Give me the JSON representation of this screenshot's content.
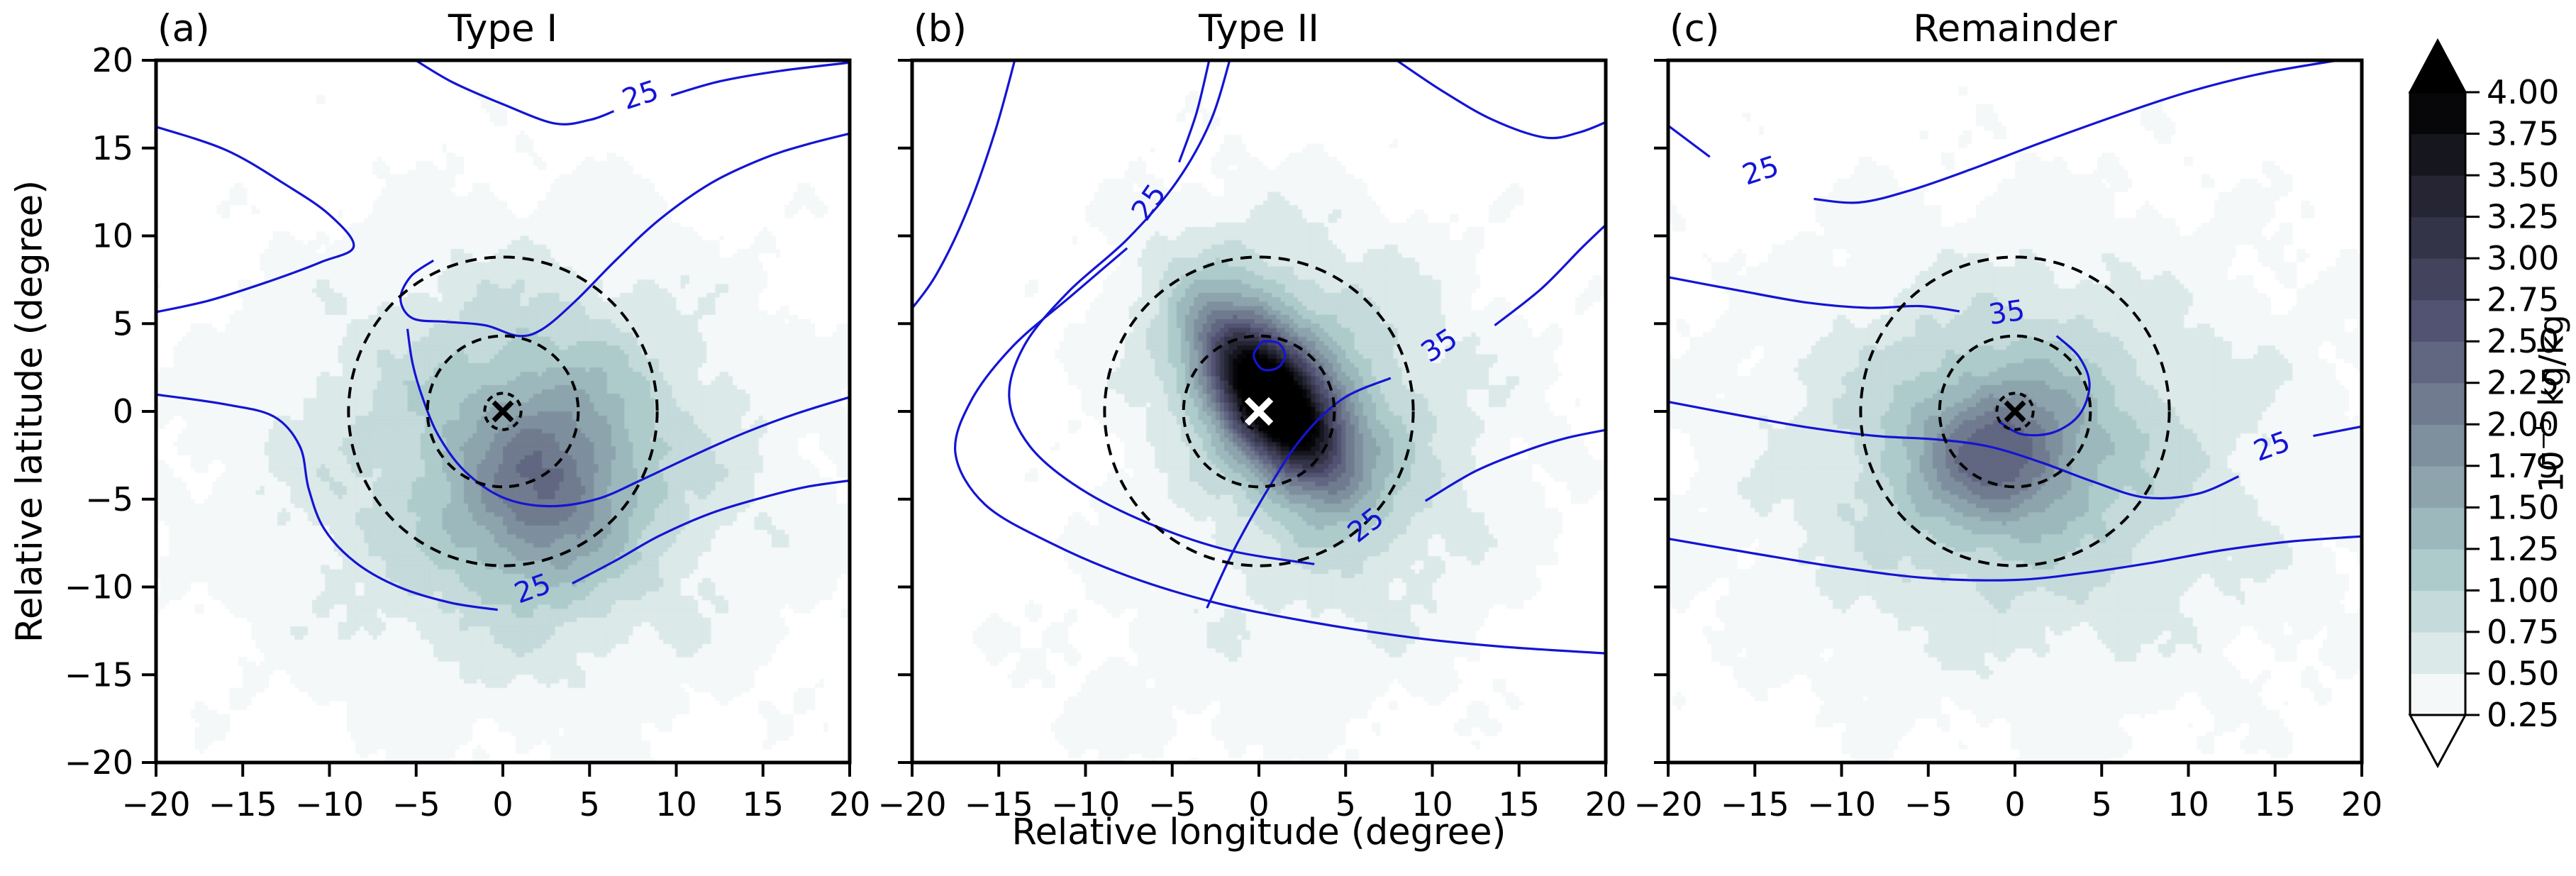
{
  "chart_data": {
    "type": "contour",
    "figure": {
      "xlabel": "Relative longitude (degree)",
      "ylabel": "Relative latitude (degree)",
      "xlim": [
        -20,
        20
      ],
      "ylim": [
        -20,
        20
      ],
      "x_ticks": [
        -20,
        -15,
        -10,
        -5,
        0,
        5,
        10,
        15,
        20
      ],
      "y_ticks": [
        -20,
        -15,
        -10,
        -5,
        0,
        5,
        10,
        15,
        20
      ],
      "x_tick_labels": [
        "−20",
        "−15",
        "−10",
        "−5",
        "0",
        "5",
        "10",
        "15",
        "20"
      ],
      "y_tick_labels": [
        "−20",
        "−15",
        "−10",
        "−5",
        "0",
        "5",
        "10",
        "15",
        "20"
      ]
    },
    "colorbar": {
      "unit": {
        "base": "10",
        "exponent": "−5",
        "rest": " kg/kg"
      },
      "tick_labels": [
        "0.25",
        "0.50",
        "0.75",
        "1.00",
        "1.25",
        "1.50",
        "1.75",
        "2.00",
        "2.25",
        "2.50",
        "2.75",
        "3.00",
        "3.25",
        "3.50",
        "3.75",
        "4.00"
      ],
      "levels": [
        0.25,
        0.5,
        0.75,
        1.0,
        1.25,
        1.5,
        1.75,
        2.0,
        2.25,
        2.5,
        2.75,
        3.0,
        3.25,
        3.5,
        3.75,
        4.0
      ],
      "extend": "both",
      "colors": [
        "#f4f8f8",
        "#dce9e9",
        "#c5dada",
        "#aecbcb",
        "#9cb8bc",
        "#8da4ad",
        "#7e8f9e",
        "#707b8f",
        "#616681",
        "#525272",
        "#43435d",
        "#343448",
        "#252534",
        "#16161f",
        "#07070a"
      ],
      "under_color": "#ffffff",
      "over_color": "#000000"
    },
    "style": {
      "line_contour_color": "#1414d4",
      "frame_color": "#000000",
      "range_circle_radii_deg": [
        1.05,
        4.35,
        8.9
      ]
    },
    "panels": [
      {
        "letter": "(a)",
        "title": "Type I",
        "marker": {
          "x": 0,
          "y": 0,
          "symbol": "x",
          "color": "#000000"
        },
        "field": {
          "seed": 3,
          "components": [
            {
              "a": 0.95,
              "cx": 2.5,
              "cy": -4.5,
              "sx": 4.5,
              "sy": 5.5,
              "rot": -10
            },
            {
              "a": 0.5,
              "cx": 2.0,
              "cy": -2.0,
              "sx": 8.0,
              "sy": 8.5,
              "rot": 0
            },
            {
              "a": 0.45,
              "cx": 1.0,
              "cy": -3.0,
              "sx": 14.0,
              "sy": 12.0,
              "rot": 0
            },
            {
              "a": 0.42,
              "cx": 0.0,
              "cy": -4.0,
              "sx": 24.0,
              "sy": 18.0,
              "rot": 0
            }
          ]
        },
        "lines": [
          [
            [
              -5.5,
              20.3
            ],
            [
              -3,
              18.8
            ],
            [
              0,
              17.5
            ],
            [
              3,
              16.4
            ],
            [
              5,
              16.6
            ],
            [
              6.4,
              17.1
            ]
          ],
          [
            [
              9.7,
              18.0
            ],
            [
              12.5,
              18.8
            ],
            [
              16,
              19.4
            ],
            [
              20.3,
              19.9
            ]
          ],
          [
            [
              -20.3,
              16.3
            ],
            [
              -16,
              14.9
            ],
            [
              -12.5,
              12.9
            ],
            [
              -10,
              11.2
            ],
            [
              -8.6,
              9.4
            ],
            [
              -10.5,
              8.5
            ],
            [
              -13.5,
              7.4
            ],
            [
              -17,
              6.3
            ],
            [
              -20.3,
              5.6
            ]
          ],
          [
            [
              -4,
              8.6
            ],
            [
              -5.3,
              7.7
            ],
            [
              -5.9,
              6.4
            ],
            [
              -5.2,
              5.3
            ],
            [
              -3.2,
              5.1
            ],
            [
              -1,
              4.9
            ],
            [
              0.9,
              4.3
            ],
            [
              2.3,
              4.7
            ],
            [
              4.2,
              6.3
            ],
            [
              6.5,
              8.6
            ],
            [
              9,
              10.9
            ],
            [
              12,
              13
            ],
            [
              15,
              14.4
            ],
            [
              17.5,
              15.2
            ],
            [
              20.3,
              15.9
            ]
          ],
          [
            [
              -5.5,
              4.7
            ],
            [
              -5.2,
              2.7
            ],
            [
              -4.6,
              0.7
            ],
            [
              -3.7,
              -1.4
            ],
            [
              -2.2,
              -3.4
            ],
            [
              0,
              -4.9
            ],
            [
              2.6,
              -5.4
            ],
            [
              5.4,
              -5
            ],
            [
              8,
              -3.9
            ],
            [
              11,
              -2.5
            ],
            [
              14,
              -1.2
            ],
            [
              17,
              -0.1
            ],
            [
              20.3,
              0.9
            ]
          ],
          [
            [
              -20.3,
              1
            ],
            [
              -16,
              0.4
            ],
            [
              -13.2,
              -0.3
            ],
            [
              -11.7,
              -2
            ],
            [
              -11.2,
              -4.4
            ],
            [
              -10.3,
              -6.7
            ],
            [
              -8.5,
              -8.6
            ],
            [
              -6,
              -10
            ],
            [
              -3,
              -10.9
            ],
            [
              -0.3,
              -11.3
            ]
          ],
          [
            [
              4,
              -9.8
            ],
            [
              6.5,
              -8.5
            ],
            [
              9,
              -7.1
            ],
            [
              12,
              -5.8
            ],
            [
              15,
              -4.9
            ],
            [
              17.5,
              -4.3
            ],
            [
              20.3,
              -3.9
            ]
          ]
        ],
        "line_labels": [
          {
            "text": "25",
            "x": 8.1,
            "y": 17.5,
            "rot": -18
          },
          {
            "text": "25",
            "x": 1.9,
            "y": -10.6,
            "rot": -20
          }
        ]
      },
      {
        "letter": "(b)",
        "title": "Type II",
        "marker": {
          "x": 0,
          "y": 0,
          "symbol": "x",
          "color": "#ffffff"
        },
        "field": {
          "seed": 11,
          "components": [
            {
              "a": 3.4,
              "cx": 0.8,
              "cy": 0.6,
              "sx": 2.4,
              "sy": 5.0,
              "rot": 38
            },
            {
              "a": 1.0,
              "cx": 1.2,
              "cy": 0.8,
              "sx": 4.5,
              "sy": 8.0,
              "rot": 38
            },
            {
              "a": 0.55,
              "cx": 2.5,
              "cy": 1.5,
              "sx": 9.0,
              "sy": 12.0,
              "rot": 30
            },
            {
              "a": 0.38,
              "cx": 5.0,
              "cy": -1.0,
              "sx": 16.0,
              "sy": 14.0,
              "rot": 0
            },
            {
              "a": 0.25,
              "cx": -4.0,
              "cy": -16.0,
              "sx": 16.0,
              "sy": 8.0,
              "rot": 0
            }
          ]
        },
        "lines": [
          [
            [
              -14,
              20.3
            ],
            [
              -15.2,
              16
            ],
            [
              -16.8,
              11.5
            ],
            [
              -18.6,
              7.8
            ],
            [
              -20.3,
              5.5
            ]
          ],
          [
            [
              -2.8,
              20.3
            ],
            [
              -3.6,
              17
            ],
            [
              -4.6,
              14.2
            ]
          ],
          [
            [
              -7.6,
              9.3
            ],
            [
              -10.8,
              6.6
            ],
            [
              -14.2,
              3.7
            ],
            [
              -16.6,
              0.6
            ],
            [
              -17.5,
              -2.4
            ],
            [
              -15.8,
              -5.3
            ],
            [
              -12,
              -7.5
            ],
            [
              -7.5,
              -9.4
            ],
            [
              -2.5,
              -10.9
            ],
            [
              3,
              -12
            ],
            [
              9,
              -12.9
            ],
            [
              14,
              -13.4
            ],
            [
              20.3,
              -13.8
            ]
          ],
          [
            [
              -1.6,
              20.3
            ],
            [
              -2.8,
              16.5
            ],
            [
              -4.8,
              13
            ],
            [
              -7.6,
              9.8
            ],
            [
              -11,
              6.8
            ],
            [
              -13.5,
              3.8
            ],
            [
              -14.4,
              0.8
            ],
            [
              -13.2,
              -2
            ],
            [
              -10.3,
              -4.4
            ],
            [
              -6.3,
              -6.4
            ],
            [
              -1.8,
              -7.9
            ],
            [
              3.2,
              -8.7
            ]
          ],
          [
            [
              9.6,
              -5.1
            ],
            [
              12.5,
              -3.4
            ],
            [
              15.5,
              -2.2
            ],
            [
              17.8,
              -1.5
            ],
            [
              20.3,
              -1
            ]
          ],
          [
            [
              -3,
              -11.2
            ],
            [
              -1.5,
              -8
            ],
            [
              0.3,
              -4.8
            ],
            [
              2.4,
              -1.6
            ],
            [
              4.8,
              0.7
            ],
            [
              7.6,
              1.9
            ]
          ],
          [
            [
              13.6,
              4.9
            ],
            [
              16.3,
              7
            ],
            [
              18.6,
              9.3
            ],
            [
              20.3,
              10.9
            ]
          ],
          [
            [
              7.5,
              20.3
            ],
            [
              10.5,
              18.3
            ],
            [
              13.5,
              16.6
            ],
            [
              16.5,
              15.6
            ],
            [
              18.5,
              15.9
            ],
            [
              20.3,
              16.6
            ]
          ],
          [
            [
              0.2,
              4.0
            ],
            [
              1.1,
              3.9
            ],
            [
              1.5,
              3.2
            ],
            [
              1.1,
              2.5
            ],
            [
              0.2,
              2.4
            ],
            [
              -0.3,
              3.2
            ],
            [
              0.2,
              4.0
            ]
          ]
        ],
        "line_labels": [
          {
            "text": "25",
            "x": -5.9,
            "y": 11.6,
            "rot": -55
          },
          {
            "text": "35",
            "x": 10.7,
            "y": 3.3,
            "rot": -33
          },
          {
            "text": "25",
            "x": 6.5,
            "y": -6.9,
            "rot": -38
          }
        ]
      },
      {
        "letter": "(c)",
        "title": "Remainder",
        "marker": {
          "x": 0,
          "y": 0,
          "symbol": "x",
          "color": "#000000"
        },
        "field": {
          "seed": 7,
          "components": [
            {
              "a": 1.05,
              "cx": -1.0,
              "cy": -2.5,
              "sx": 4.2,
              "sy": 3.6,
              "rot": 10
            },
            {
              "a": 0.55,
              "cx": -0.5,
              "cy": -1.5,
              "sx": 7.5,
              "sy": 6.5,
              "rot": 0
            },
            {
              "a": 0.5,
              "cx": 0.0,
              "cy": -3.0,
              "sx": 14.0,
              "sy": 11.0,
              "rot": 0
            },
            {
              "a": 0.42,
              "cx": 2.0,
              "cy": -3.0,
              "sx": 26.0,
              "sy": 19.0,
              "rot": 0
            }
          ]
        },
        "lines": [
          [
            [
              -20.3,
              16.5
            ],
            [
              -17.6,
              14.5
            ]
          ],
          [
            [
              -11.6,
              12.1
            ],
            [
              -9,
              11.9
            ],
            [
              -6,
              12.6
            ],
            [
              -2.5,
              13.8
            ],
            [
              1.5,
              15.3
            ],
            [
              6,
              16.9
            ],
            [
              10,
              18.2
            ],
            [
              14,
              19.2
            ],
            [
              18,
              19.9
            ],
            [
              20.3,
              20.2
            ]
          ],
          [
            [
              -20.3,
              7.7
            ],
            [
              -16,
              6.9
            ],
            [
              -12,
              6.2
            ],
            [
              -8.5,
              5.9
            ],
            [
              -5.5,
              6.0
            ],
            [
              -3.2,
              5.7
            ]
          ],
          [
            [
              2.4,
              4.3
            ],
            [
              3.7,
              3.1
            ],
            [
              4.3,
              1.5
            ],
            [
              3.7,
              -0.2
            ],
            [
              2.2,
              -1.2
            ],
            [
              0.4,
              -1.3
            ],
            [
              -0.9,
              -0.6
            ]
          ],
          [
            [
              -20.3,
              0.6
            ],
            [
              -16,
              -0.2
            ],
            [
              -12,
              -0.9
            ],
            [
              -8,
              -1.4
            ],
            [
              -4.5,
              -1.6
            ],
            [
              -1.5,
              -2
            ],
            [
              1.5,
              -2.9
            ],
            [
              4.5,
              -4
            ],
            [
              7.5,
              -4.9
            ],
            [
              10.5,
              -4.7
            ],
            [
              12.9,
              -3.7
            ]
          ],
          [
            [
              17.2,
              -1.4
            ],
            [
              20.3,
              -0.8
            ]
          ],
          [
            [
              -20.3,
              -7.2
            ],
            [
              -15,
              -8.1
            ],
            [
              -10,
              -8.9
            ],
            [
              -5,
              -9.5
            ],
            [
              0,
              -9.6
            ],
            [
              4,
              -9.2
            ],
            [
              8,
              -8.6
            ],
            [
              12,
              -7.9
            ],
            [
              16,
              -7.4
            ],
            [
              20.3,
              -7.1
            ]
          ]
        ],
        "line_labels": [
          {
            "text": "25",
            "x": -14.5,
            "y": 13.2,
            "rot": -18
          },
          {
            "text": "35",
            "x": -0.4,
            "y": 5.1,
            "rot": -8
          },
          {
            "text": "25",
            "x": 15.0,
            "y": -2.5,
            "rot": -20
          }
        ]
      }
    ]
  }
}
